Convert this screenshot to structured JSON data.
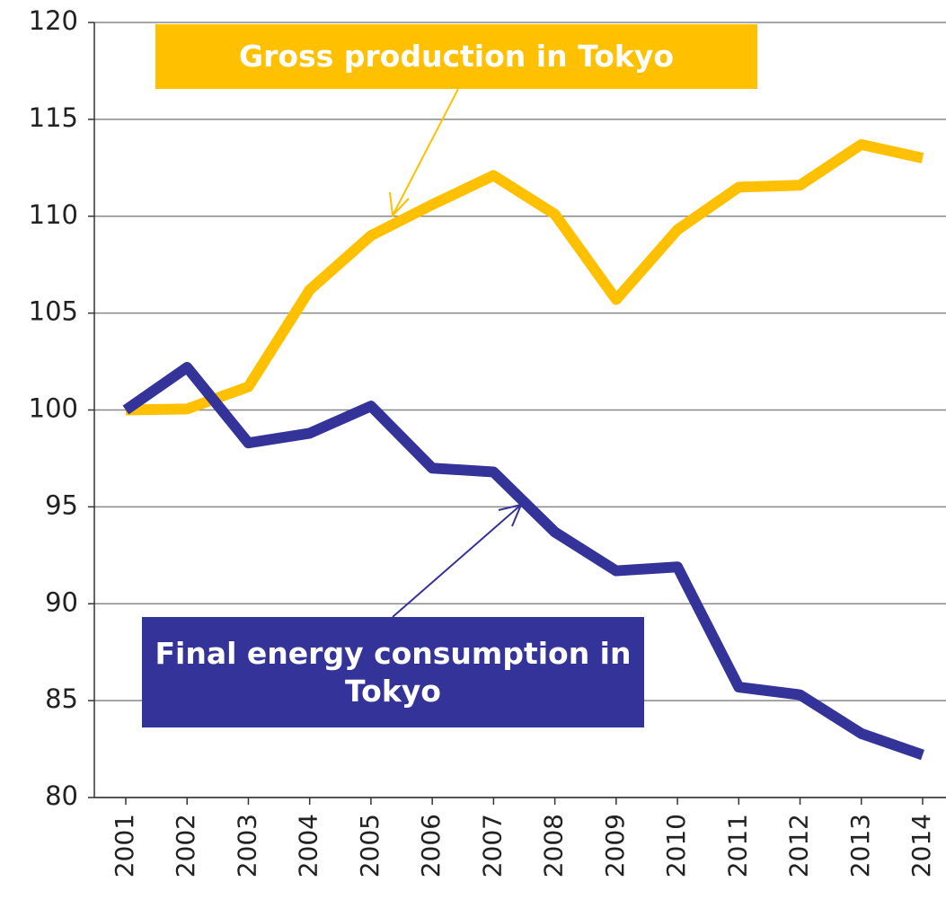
{
  "chart_data": {
    "type": "line",
    "categories": [
      "2001",
      "2002",
      "2003",
      "2004",
      "2005",
      "2006",
      "2007",
      "2008",
      "2009",
      "2010",
      "2011",
      "2012",
      "2013",
      "2014"
    ],
    "series": [
      {
        "name": "Gross production in Tokyo",
        "color": "#ffc000",
        "values": [
          100,
          100.05,
          101.2,
          106.2,
          109,
          110.6,
          112.1,
          110.1,
          105.7,
          109.3,
          111.5,
          111.6,
          113.7,
          113
        ]
      },
      {
        "name": "Final energy consumption in Tokyo",
        "color": "#333399",
        "values": [
          100,
          102.2,
          98.3,
          98.8,
          100.2,
          97,
          96.8,
          93.7,
          91.7,
          91.9,
          85.7,
          85.3,
          83.3,
          82.2
        ]
      }
    ],
    "ylim": [
      80,
      120
    ],
    "yticks": [
      80,
      85,
      90,
      95,
      100,
      105,
      110,
      115,
      120
    ],
    "grid": true
  }
}
